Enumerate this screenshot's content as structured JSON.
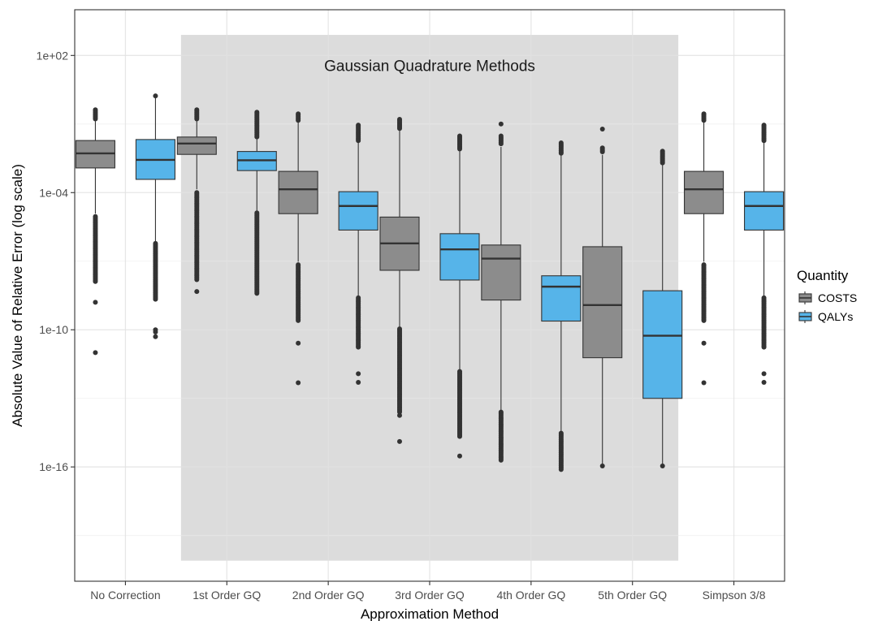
{
  "chart_data": {
    "type": "box",
    "title": "",
    "xlabel": "Approximation Method",
    "ylabel": "Absolute Value of Relative Error (log scale)",
    "y_scale": "log10",
    "ylim": [
      1e-21,
      10000.0
    ],
    "y_ticks": [
      {
        "value": 100.0,
        "label": "1e+02"
      },
      {
        "value": 0.0001,
        "label": "1e-04"
      },
      {
        "value": 1e-10,
        "label": "1e-10"
      },
      {
        "value": 1e-16,
        "label": "1e-16"
      }
    ],
    "grid": true,
    "categories": [
      "No Correction",
      "1st Order GQ",
      "2nd Order GQ",
      "3rd Order GQ",
      "4th Order GQ",
      "5th Order GQ",
      "Simpson 3/8"
    ],
    "shaded_region": {
      "from_category": "1st Order GQ",
      "to_category": "5th Order GQ",
      "label": "Gaussian Quadrature Methods",
      "color": "#dcdcdc"
    },
    "legend": {
      "title": "Quantity",
      "position": "right",
      "entries": [
        {
          "name": "COSTS",
          "color": "#8c8c8c"
        },
        {
          "name": "QALYs",
          "color": "#56b4e9"
        }
      ]
    },
    "series": [
      {
        "name": "COSTS",
        "color": "#8c8c8c",
        "boxes": [
          {
            "category": "No Correction",
            "q1": 0.0012,
            "median": 0.0052,
            "q3": 0.019,
            "whisker_low": 1.2e-05,
            "whisker_high": 0.2,
            "outliers_low": {
              "from": 1.2e-08,
              "to": 9e-06,
              "extra": [
                1.6e-09,
                1e-11
              ]
            },
            "outliers_high": {
              "from": 0.16,
              "to": 0.42,
              "extra": []
            }
          },
          {
            "category": "1st Order GQ",
            "q1": 0.0047,
            "median": 0.014,
            "q3": 0.027,
            "whisker_low": 0.00014,
            "whisker_high": 0.2,
            "outliers_low": {
              "from": 1.4e-08,
              "to": 0.0001,
              "extra": [
                4.7e-09
              ]
            },
            "outliers_high": {
              "from": 0.15,
              "to": 0.42,
              "extra": []
            }
          },
          {
            "category": "2nd Order GQ",
            "q1": 1.2e-05,
            "median": 0.00014,
            "q3": 0.00085,
            "whisker_low": 9.5e-08,
            "whisker_high": 0.13,
            "outliers_low": {
              "from": 2.5e-10,
              "to": 7e-08,
              "extra": [
                2.6e-11,
                4.8e-13
              ]
            },
            "outliers_high": {
              "from": 0.14,
              "to": 0.28,
              "extra": []
            }
          },
          {
            "category": "3rd Order GQ",
            "q1": 4e-08,
            "median": 6e-07,
            "q3": 8.5e-06,
            "whisker_low": 1.3e-10,
            "whisker_high": 0.06,
            "outliers_low": {
              "from": 2.3e-14,
              "to": 1.1e-10,
              "extra": [
                1.8e-14,
                1.3e-15
              ]
            },
            "outliers_high": {
              "from": 0.06,
              "to": 0.16,
              "extra": []
            }
          },
          {
            "category": "4th Order GQ",
            "q1": 2e-09,
            "median": 1.3e-07,
            "q3": 5.1e-07,
            "whisker_low": 3e-14,
            "whisker_high": 0.01,
            "outliers_low": {
              "from": 1.9e-16,
              "to": 2.5e-14,
              "extra": []
            },
            "outliers_high": {
              "from": 0.013,
              "to": 0.03,
              "extra": [
                0.1
              ]
            }
          },
          {
            "category": "5th Order GQ",
            "q1": 6e-12,
            "median": 1.2e-09,
            "q3": 4.3e-07,
            "whisker_low": 1.1e-16,
            "whisker_high": 0.0045,
            "outliers_low": {
              "from": 1.1e-16,
              "to": 1.1e-16,
              "extra": []
            },
            "outliers_high": {
              "from": 0.0055,
              "to": 0.009,
              "extra": [
                0.06
              ]
            }
          },
          {
            "category": "Simpson 3/8",
            "q1": 1.2e-05,
            "median": 0.00014,
            "q3": 0.00085,
            "whisker_low": 9.5e-08,
            "whisker_high": 0.13,
            "outliers_low": {
              "from": 2.5e-10,
              "to": 7e-08,
              "extra": [
                2.6e-11,
                4.8e-13
              ]
            },
            "outliers_high": {
              "from": 0.14,
              "to": 0.28,
              "extra": []
            }
          }
        ]
      },
      {
        "name": "QALYs",
        "color": "#56b4e9",
        "boxes": [
          {
            "category": "No Correction",
            "q1": 0.00038,
            "median": 0.0027,
            "q3": 0.021,
            "whisker_low": 6.5e-07,
            "whisker_high": 1.7,
            "outliers_low": {
              "from": 2e-09,
              "to": 6e-07,
              "extra": [
                1e-10,
                8e-11,
                5e-11
              ]
            },
            "outliers_high": {
              "from": 1.7,
              "to": 1.7,
              "extra": []
            }
          },
          {
            "category": "1st Order GQ",
            "q1": 0.00092,
            "median": 0.0026,
            "q3": 0.0063,
            "whisker_low": 1.3e-05,
            "whisker_high": 0.035,
            "outliers_low": {
              "from": 3.5e-09,
              "to": 1.3e-05,
              "extra": []
            },
            "outliers_high": {
              "from": 0.025,
              "to": 0.33,
              "extra": []
            }
          },
          {
            "category": "2nd Order GQ",
            "q1": 2.3e-06,
            "median": 2.6e-05,
            "q3": 0.00011,
            "whisker_low": 2.5e-09,
            "whisker_high": 0.015,
            "outliers_low": {
              "from": 1.7e-11,
              "to": 2.5e-09,
              "extra": [
                1.2e-12,
                5e-13
              ]
            },
            "outliers_high": {
              "from": 0.018,
              "to": 0.09,
              "extra": []
            }
          },
          {
            "category": "3rd Order GQ",
            "q1": 1.5e-08,
            "median": 3.3e-07,
            "q3": 1.6e-06,
            "whisker_low": 1.5e-12,
            "whisker_high": 0.008,
            "outliers_low": {
              "from": 2e-15,
              "to": 1.5e-12,
              "extra": [
                3e-16
              ]
            },
            "outliers_high": {
              "from": 0.008,
              "to": 0.03,
              "extra": []
            }
          },
          {
            "category": "4th Order GQ",
            "q1": 2.4e-10,
            "median": 7.7e-09,
            "q3": 2.3e-08,
            "whisker_low": 3e-15,
            "whisker_high": 0.005,
            "outliers_low": {
              "from": 7e-17,
              "to": 3e-15,
              "extra": []
            },
            "outliers_high": {
              "from": 0.005,
              "to": 0.015,
              "extra": []
            }
          },
          {
            "category": "5th Order GQ",
            "q1": 1e-13,
            "median": 5.5e-11,
            "q3": 5.1e-09,
            "whisker_low": 1.1e-16,
            "whisker_high": 0.0025,
            "outliers_low": {
              "from": 1.1e-16,
              "to": 1.1e-16,
              "extra": []
            },
            "outliers_high": {
              "from": 0.0018,
              "to": 0.0065,
              "extra": []
            }
          },
          {
            "category": "Simpson 3/8",
            "q1": 2.3e-06,
            "median": 2.6e-05,
            "q3": 0.00011,
            "whisker_low": 2.5e-09,
            "whisker_high": 0.015,
            "outliers_low": {
              "from": 1.7e-11,
              "to": 2.5e-09,
              "extra": [
                1.2e-12,
                5e-13
              ]
            },
            "outliers_high": {
              "from": 0.018,
              "to": 0.09,
              "extra": []
            }
          }
        ]
      }
    ]
  }
}
